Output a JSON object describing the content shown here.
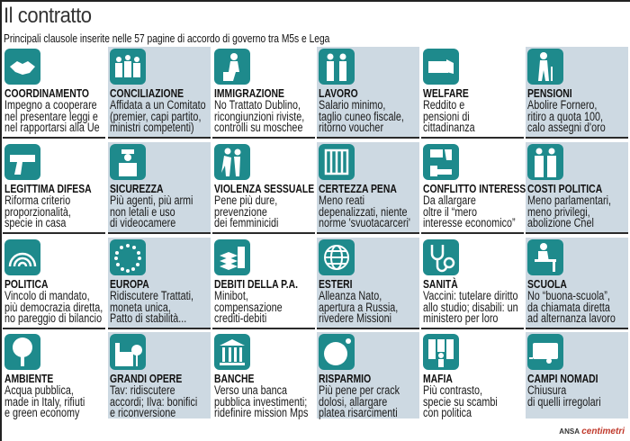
{
  "title": "Il contratto",
  "subtitle": "Principali clausole inserite nelle 57 pagine di accordo di governo tra M5s e Lega",
  "colors": {
    "icon": "#1e8a8c",
    "alt_column": "#cdd9e2",
    "credit_accent": "#c0392b"
  },
  "items": [
    {
      "title": "COORDINAMENTO",
      "lines": [
        "Impegno a cooperare",
        "nel presentare leggi e",
        "nel rapportarsi alla Ue"
      ],
      "icon": "handshake-icon"
    },
    {
      "title": "CONCILIAZIONE",
      "lines": [
        "Affidata a un Comitato",
        "(premier, capi partito,",
        "ministri competenti)"
      ],
      "icon": "people-group-icon"
    },
    {
      "title": "IMMIGRAZIONE",
      "lines": [
        "No Trattato Dublino,",
        "ricongiunzioni riviste,",
        "controlli su moschee"
      ],
      "icon": "migrant-luggage-icon"
    },
    {
      "title": "LAVORO",
      "lines": [
        "Salario minimo,",
        "taglio cuneo fiscale,",
        "ritorno voucher"
      ],
      "icon": "workers-icon"
    },
    {
      "title": "WELFARE",
      "lines": [
        "Reddito e",
        "pensioni di",
        "cittadinanza"
      ],
      "icon": "money-hand-icon"
    },
    {
      "title": "PENSIONI",
      "lines": [
        "Abolire Fornero,",
        "ritiro a quota 100,",
        "calo assegni d'oro"
      ],
      "icon": "elderly-cane-icon"
    },
    {
      "title": "LEGITTIMA DIFESA",
      "lines": [
        "Riforma criterio",
        "proporzionalità,",
        "specie in casa"
      ],
      "icon": "pistol-icon"
    },
    {
      "title": "SICUREZZA",
      "lines": [
        "Più agenti, più armi",
        "non letali e uso",
        "di videocamere"
      ],
      "icon": "police-officer-icon"
    },
    {
      "title": "VIOLENZA SESSUALE",
      "lines": [
        "Pene più dure,",
        "prevenzione",
        "dei femminicidi"
      ],
      "icon": "aggression-icon"
    },
    {
      "title": "CERTEZZA PENA",
      "lines": [
        "Meno reati",
        "depenalizzati, niente",
        "norme 'svuotacarceri'"
      ],
      "icon": "prison-bars-icon"
    },
    {
      "title": "CONFLITTO INTERESSI",
      "lines": [
        "Da allargare",
        "oltre il “mero",
        "interesse economico”"
      ],
      "icon": "money-exchange-icon"
    },
    {
      "title": "COSTI POLITICA",
      "lines": [
        "Meno parlamentari,",
        "meno privilegi,",
        "abolizione Cnel"
      ],
      "icon": "politicians-icon"
    },
    {
      "title": "POLITICA",
      "lines": [
        "Vincolo di mandato,",
        "più democrazia diretta,",
        "no pareggio di bilancio"
      ],
      "icon": "parliament-hemicycle-icon"
    },
    {
      "title": "EUROPA",
      "lines": [
        "Ridiscutere Trattati,",
        "moneta unica,",
        "Patto di stabilità..."
      ],
      "icon": "eu-stars-icon"
    },
    {
      "title": "DEBITI DELLA P.A.",
      "lines": [
        "Minibot,",
        "compensazione",
        "crediti-debiti"
      ],
      "icon": "paper-stacks-icon"
    },
    {
      "title": "ESTERI",
      "lines": [
        "Alleanza Nato,",
        "apertura a Russia,",
        "rivedere Missioni"
      ],
      "icon": "globe-icon"
    },
    {
      "title": "SANITÀ",
      "lines": [
        "Vaccini: tutelare diritto",
        "allo studio; disabili: un",
        "ministero per loro"
      ],
      "icon": "stethoscope-icon"
    },
    {
      "title": "SCUOLA",
      "lines": [
        "No “buona-scuola”,",
        "da chiamata diretta",
        "ad alternanza lavoro"
      ],
      "icon": "student-desk-icon"
    },
    {
      "title": "AMBIENTE",
      "lines": [
        "Acqua pubblica,",
        "made in Italy, rifiuti",
        "e green economy"
      ],
      "icon": "tree-icon"
    },
    {
      "title": "GRANDI OPERE",
      "lines": [
        "Tav: ridiscutere",
        "accordi; Ilva: bonifici",
        "e riconversione"
      ],
      "icon": "factory-icon"
    },
    {
      "title": "BANCHE",
      "lines": [
        "Verso una banca",
        "pubblica investimenti;",
        "ridefinire mission Mps"
      ],
      "icon": "bank-building-icon"
    },
    {
      "title": "RISPARMIO",
      "lines": [
        "Più pene per crack",
        "dolosi, allargare",
        "platea risarcimenti"
      ],
      "icon": "piggy-bank-icon"
    },
    {
      "title": "MAFIA",
      "lines": [
        "Più contrasto,",
        "specie su scambi",
        "con politica"
      ],
      "icon": "mafia-figures-icon"
    },
    {
      "title": "CAMPI NOMADI",
      "lines": [
        "Chiusura",
        "di quelli irregolari"
      ],
      "icon": "caravan-icon"
    }
  ],
  "credit": {
    "agency": "ANSA",
    "brand": "centimetri"
  }
}
